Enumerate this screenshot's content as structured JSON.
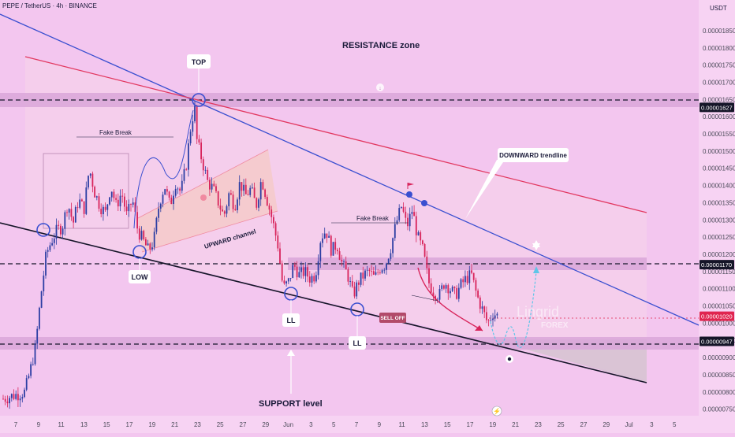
{
  "header": {
    "symbol_line": "PEPE / TetherUS · 4h · BINANCE"
  },
  "axis": {
    "currency_label": "USDT"
  },
  "colors": {
    "background": "#f3c6ef",
    "zone": "#d9a6d9",
    "bull_candle": "#2c3ea3",
    "bear_candle": "#d8245b",
    "trendline_blue": "#3a4fd0",
    "trendline_red": "#e23860",
    "support_line": "#151528",
    "price_badge": "#e0244f"
  },
  "annotations": {
    "resistance_zone": "RESISTANCE zone",
    "support_level": "SUPPORT level",
    "top": "TOP",
    "low": "LOW",
    "ll_1": "LL",
    "ll_2": "LL",
    "fake_break_1": "Fake Break",
    "fake_break_2": "Fake Break",
    "upward_channel": "UPWARD channel",
    "downward_trendline": "DOWNWARD trendline",
    "sell_off": "SELL OFF",
    "watermark_brand": "Lingrid",
    "watermark_sub": "FOREX"
  },
  "chart_data": {
    "type": "candlestick",
    "title": "PEPE / TetherUS · 4h · BINANCE",
    "ylabel": "USDT",
    "ylim": [
      7.4e-06,
      1.875e-05
    ],
    "y_ticks": [
      "0.00001850",
      "0.00001800",
      "0.00001750",
      "0.00001700",
      "0.00001650",
      "0.00001600",
      "0.00001550",
      "0.00001500",
      "0.00001450",
      "0.00001400",
      "0.00001350",
      "0.00001300",
      "0.00001250",
      "0.00001200",
      "0.00001150",
      "0.00001100",
      "0.00001050",
      "0.00001000",
      "0.00000950",
      "0.00000900",
      "0.00000850",
      "0.00000800",
      "0.00000750"
    ],
    "highlighted_levels": [
      {
        "value": 1.627e-05,
        "label": "0.00001627",
        "style": "dark"
      },
      {
        "value": 1.17e-05,
        "label": "0.00001170",
        "style": "dark"
      },
      {
        "value": 1.02e-05,
        "label": "0.00001020",
        "style": "red"
      },
      {
        "value": 9.47e-06,
        "label": "0.00000947",
        "style": "dark"
      }
    ],
    "x_ticks": [
      "7",
      "9",
      "11",
      "13",
      "15",
      "17",
      "19",
      "21",
      "23",
      "25",
      "27",
      "29",
      "Jun",
      "3",
      "5",
      "7",
      "9",
      "11",
      "13",
      "15",
      "17",
      "19",
      "21",
      "23",
      "25",
      "27",
      "29",
      "Jul",
      "3",
      "5"
    ],
    "path": [
      [
        0,
        7.8e-06
      ],
      [
        2,
        7.9e-06
      ],
      [
        4,
        8e-06
      ],
      [
        5,
        8.6e-06
      ],
      [
        6,
        9.3e-06
      ],
      [
        7,
        1.08e-05
      ],
      [
        8,
        1.2e-05
      ],
      [
        9,
        1.24e-05
      ],
      [
        10,
        1.27e-05
      ],
      [
        11,
        1.28e-05
      ],
      [
        12,
        1.35e-05
      ],
      [
        13,
        1.29e-05
      ],
      [
        14,
        1.36e-05
      ],
      [
        15,
        1.33e-05
      ],
      [
        16,
        1.45e-05
      ],
      [
        17,
        1.38e-05
      ],
      [
        18,
        1.34e-05
      ],
      [
        19,
        1.32e-05
      ],
      [
        20,
        1.4e-05
      ],
      [
        21,
        1.34e-05
      ],
      [
        22,
        1.38e-05
      ],
      [
        23,
        1.31e-05
      ],
      [
        24,
        1.36e-05
      ],
      [
        25,
        1.27e-05
      ],
      [
        26,
        1.24e-05
      ],
      [
        27,
        1.21e-05
      ],
      [
        28,
        1.24e-05
      ],
      [
        29,
        1.35e-05
      ],
      [
        30,
        1.4e-05
      ],
      [
        31,
        1.34e-05
      ],
      [
        32,
        1.41e-05
      ],
      [
        33,
        1.38e-05
      ],
      [
        34,
        1.46e-05
      ],
      [
        35,
        1.59e-05
      ],
      [
        35.6,
        1.62e-05
      ],
      [
        36,
        1.53e-05
      ],
      [
        37,
        1.47e-05
      ],
      [
        38,
        1.41e-05
      ],
      [
        39,
        1.39e-05
      ],
      [
        40,
        1.35e-05
      ],
      [
        41,
        1.31e-05
      ],
      [
        42,
        1.38e-05
      ],
      [
        43,
        1.34e-05
      ],
      [
        44,
        1.41e-05
      ],
      [
        45,
        1.37e-05
      ],
      [
        46,
        1.39e-05
      ],
      [
        47,
        1.34e-05
      ],
      [
        48,
        1.42e-05
      ],
      [
        49,
        1.36e-05
      ],
      [
        50,
        1.3e-05
      ],
      [
        51,
        1.23e-05
      ],
      [
        52,
        1.1e-05
      ],
      [
        53,
        1.12e-05
      ],
      [
        54,
        1.17e-05
      ],
      [
        55,
        1.14e-05
      ],
      [
        56,
        1.15e-05
      ],
      [
        57,
        1.13e-05
      ],
      [
        58,
        1.14e-05
      ],
      [
        59,
        1.25e-05
      ],
      [
        60,
        1.27e-05
      ],
      [
        61,
        1.21e-05
      ],
      [
        62,
        1.23e-05
      ],
      [
        63,
        1.17e-05
      ],
      [
        64,
        1.14e-05
      ],
      [
        65,
        1.08e-05
      ],
      [
        66,
        1.12e-05
      ],
      [
        67,
        1.14e-05
      ],
      [
        68,
        1.15e-05
      ],
      [
        69,
        1.13e-05
      ],
      [
        70,
        1.16e-05
      ],
      [
        71,
        1.17e-05
      ],
      [
        72,
        1.22e-05
      ],
      [
        73,
        1.29e-05
      ],
      [
        74,
        1.34e-05
      ],
      [
        75,
        1.28e-05
      ],
      [
        76,
        1.33e-05
      ],
      [
        77,
        1.25e-05
      ],
      [
        78,
        1.21e-05
      ],
      [
        79,
        1.12e-05
      ],
      [
        80,
        1.09e-05
      ],
      [
        81,
        1.08e-05
      ],
      [
        82,
        1.12e-05
      ],
      [
        83,
        1.1e-05
      ],
      [
        84,
        1.08e-05
      ],
      [
        85,
        1.11e-05
      ],
      [
        86,
        1.13e-05
      ],
      [
        87,
        1.14e-05
      ],
      [
        88,
        1.08e-05
      ],
      [
        89,
        1.04e-05
      ],
      [
        90,
        1e-05
      ],
      [
        91,
        1.03e-05
      ],
      [
        92,
        1.02e-05
      ]
    ]
  }
}
